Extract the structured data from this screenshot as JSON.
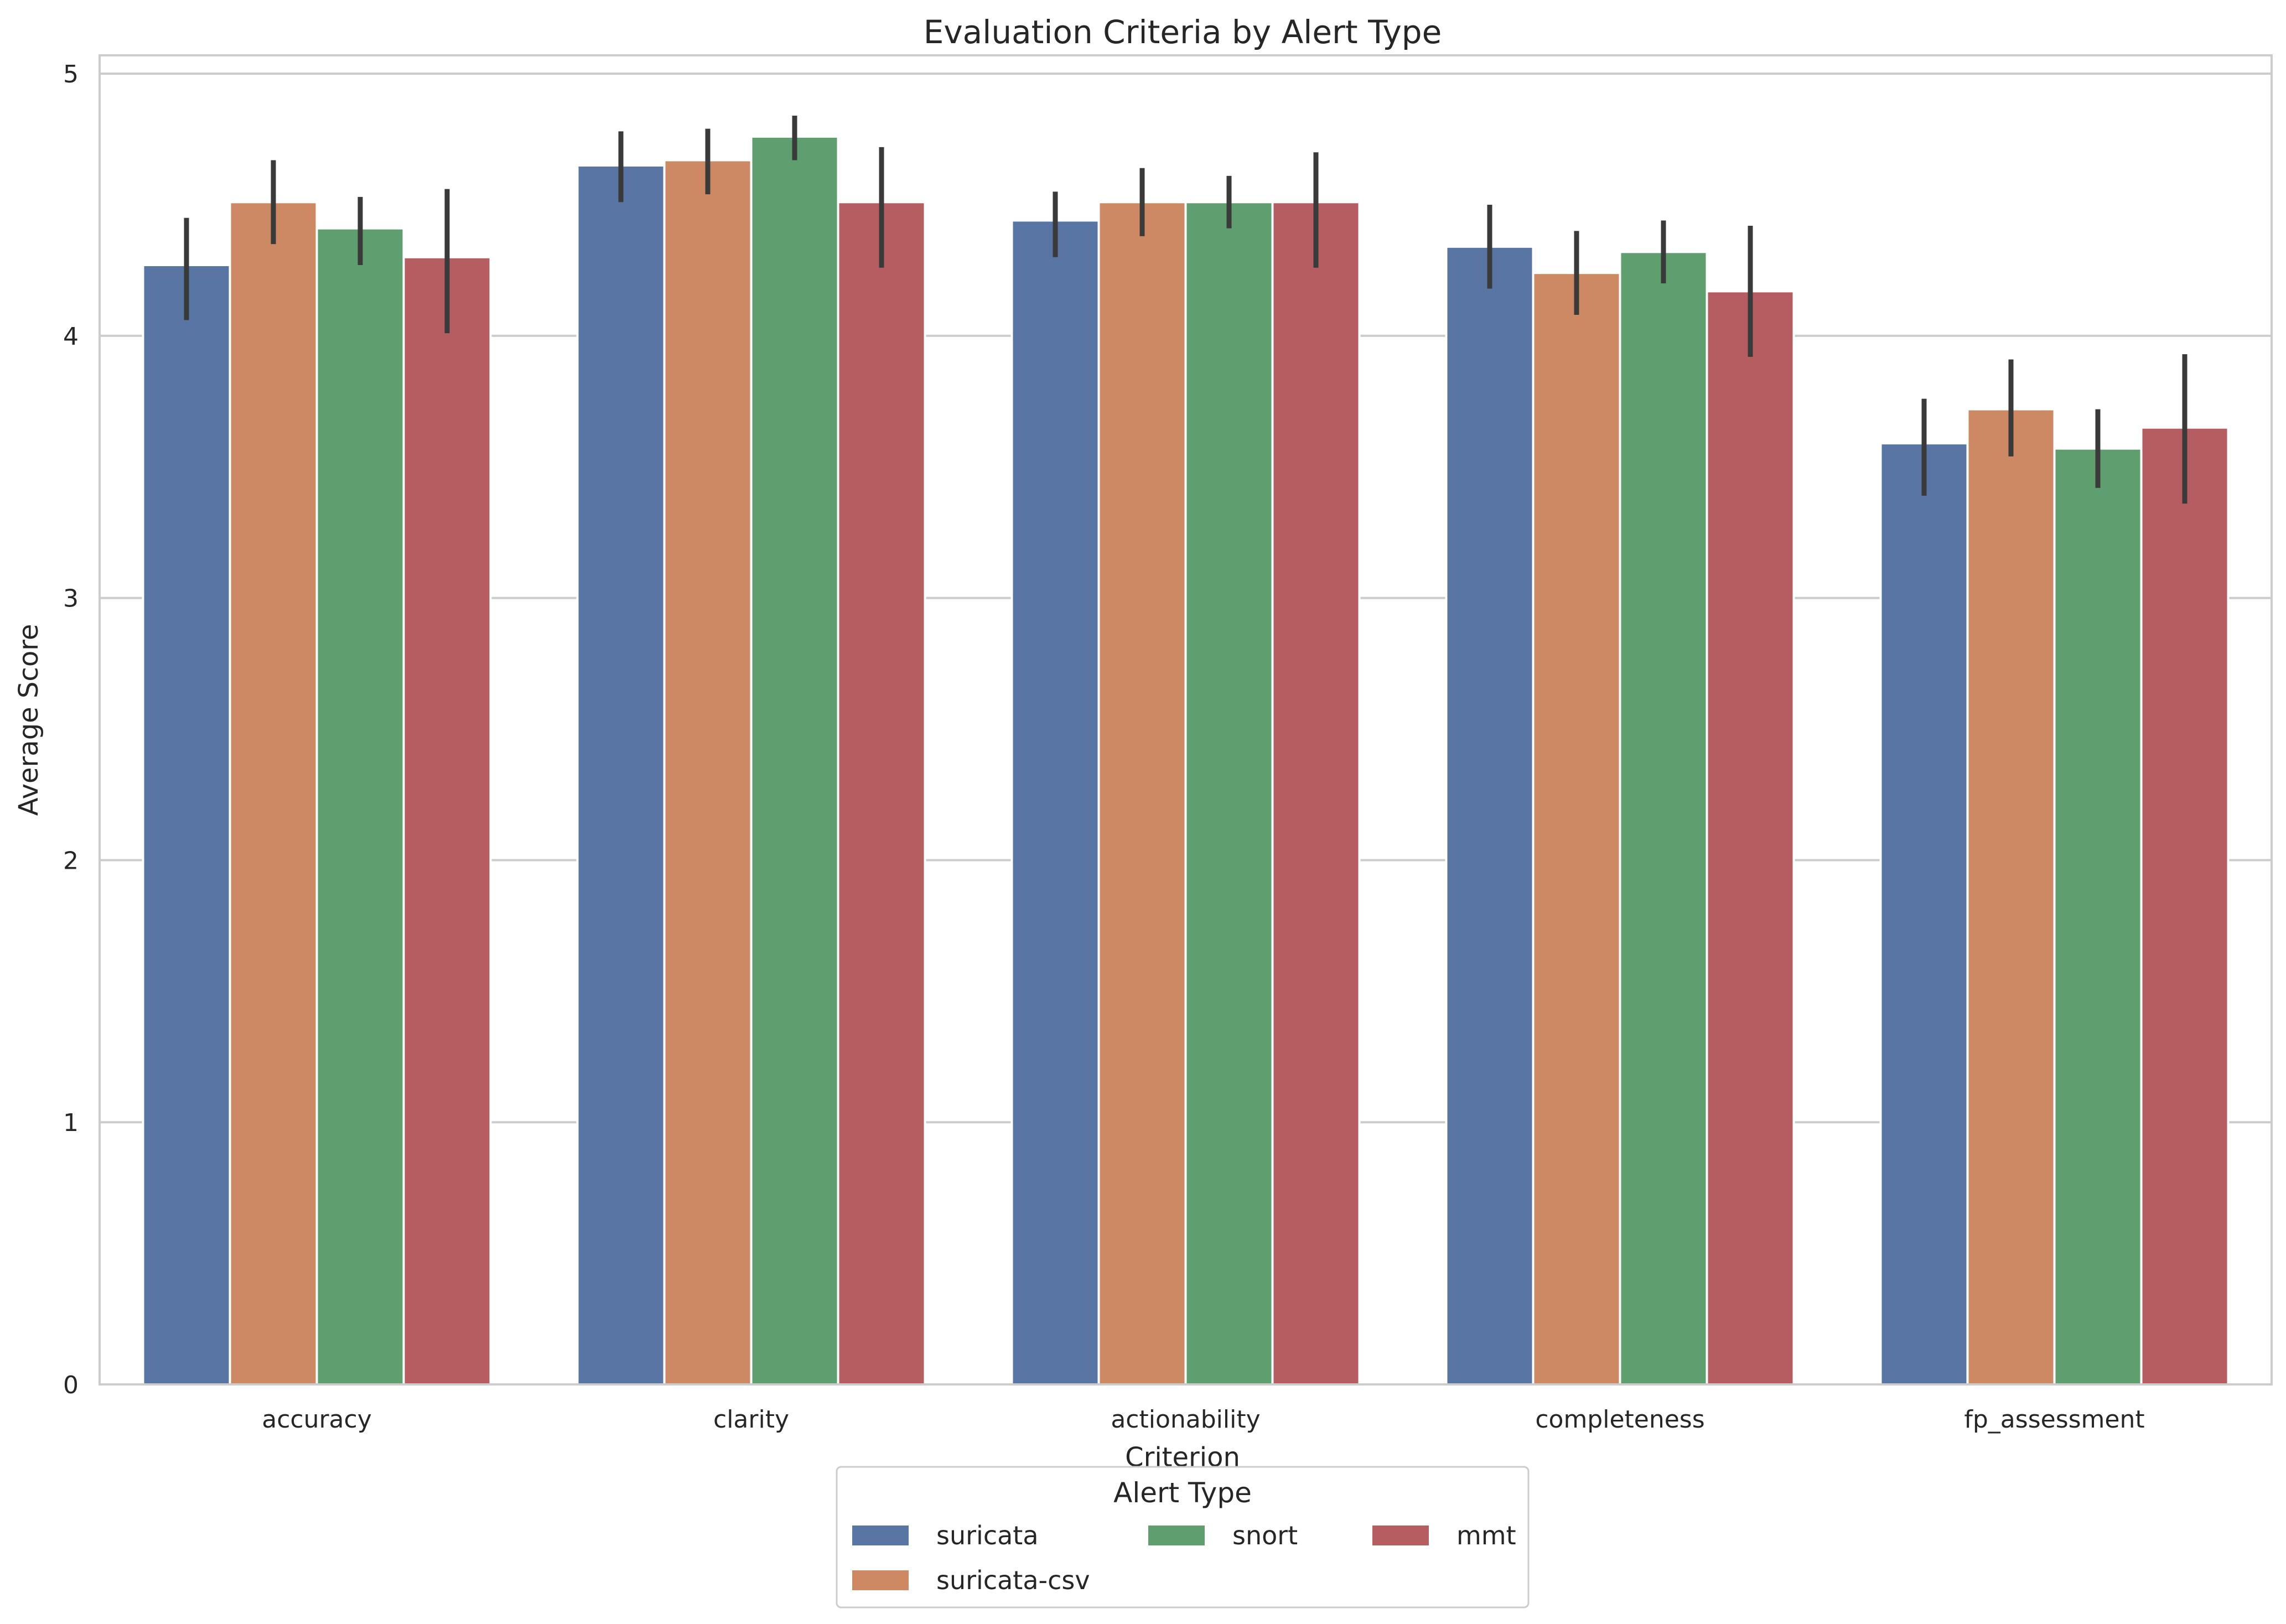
{
  "chart_data": {
    "type": "bar",
    "title": "Evaluation Criteria by Alert Type",
    "xlabel": "Criterion",
    "ylabel": "Average Score",
    "ylim": [
      0,
      5.07
    ],
    "yticks": [
      0,
      1,
      2,
      3,
      4,
      5
    ],
    "grid": "horizontal",
    "legend_placement": "below",
    "legend_title": "Alert Type",
    "categories": [
      "accuracy",
      "clarity",
      "actionability",
      "completeness",
      "fp_assessment"
    ],
    "series": [
      {
        "name": "suricata",
        "color": "#5975a4",
        "values": [
          4.27,
          4.65,
          4.44,
          4.34,
          3.59
        ],
        "ci_low": [
          4.06,
          4.51,
          4.3,
          4.18,
          3.39
        ],
        "ci_high": [
          4.45,
          4.78,
          4.55,
          4.5,
          3.76
        ]
      },
      {
        "name": "suricata-csv",
        "color": "#cc8963",
        "values": [
          4.51,
          4.67,
          4.51,
          4.24,
          3.72
        ],
        "ci_low": [
          4.35,
          4.54,
          4.38,
          4.08,
          3.54
        ],
        "ci_high": [
          4.67,
          4.79,
          4.64,
          4.4,
          3.91
        ]
      },
      {
        "name": "snort",
        "color": "#5f9e6e",
        "values": [
          4.41,
          4.76,
          4.51,
          4.32,
          3.57
        ],
        "ci_low": [
          4.27,
          4.67,
          4.41,
          4.2,
          3.42
        ],
        "ci_high": [
          4.53,
          4.84,
          4.61,
          4.44,
          3.72
        ]
      },
      {
        "name": "mmt",
        "color": "#b55d60",
        "values": [
          4.3,
          4.51,
          4.51,
          4.17,
          3.65
        ],
        "ci_low": [
          4.01,
          4.26,
          4.26,
          3.92,
          3.36
        ],
        "ci_high": [
          4.56,
          4.72,
          4.7,
          4.42,
          3.93
        ]
      }
    ]
  }
}
